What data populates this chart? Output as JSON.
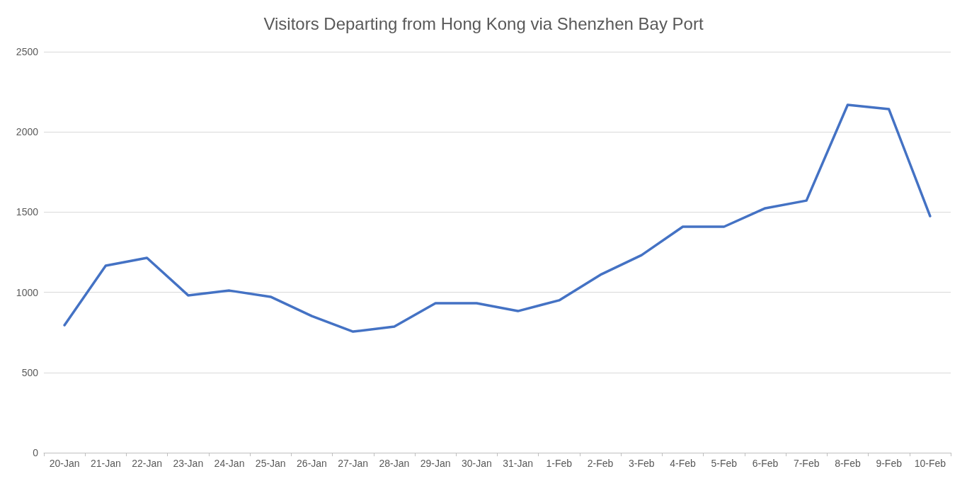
{
  "chart_data": {
    "type": "line",
    "title": "Visitors Departing from Hong Kong via Shenzhen Bay Port",
    "categories": [
      "20-Jan",
      "21-Jan",
      "22-Jan",
      "23-Jan",
      "24-Jan",
      "25-Jan",
      "26-Jan",
      "27-Jan",
      "28-Jan",
      "29-Jan",
      "30-Jan",
      "31-Jan",
      "1-Feb",
      "2-Feb",
      "3-Feb",
      "4-Feb",
      "5-Feb",
      "6-Feb",
      "7-Feb",
      "8-Feb",
      "9-Feb",
      "10-Feb"
    ],
    "series": [
      {
        "color": "#4472c4",
        "values": [
          795,
          1166,
          1215,
          981,
          1011,
          972,
          852,
          755,
          786,
          932,
          932,
          883,
          950,
          1109,
          1232,
          1409,
          1409,
          1524,
          1572,
          2169,
          2142,
          1475
        ]
      }
    ],
    "ylim": [
      0,
      2500
    ],
    "yticks": [
      0,
      500,
      1000,
      1500,
      2000,
      2500
    ],
    "grid": "y",
    "marker": "none",
    "line_style": "solid"
  }
}
